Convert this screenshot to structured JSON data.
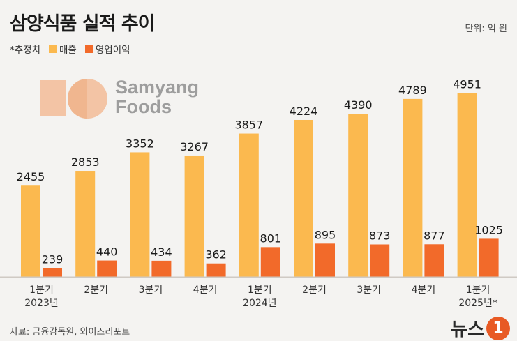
{
  "title": "삼양식품 실적 추이",
  "unit": "단위: 억 원",
  "note": "*추정치",
  "logo": {
    "brand_line1": "Samyang",
    "brand_line2": "Foods"
  },
  "source": "자료: 금융감독원, 와이즈리포트",
  "news_logo": {
    "text": "뉴스",
    "badge": "1"
  },
  "colors": {
    "revenue": "#fbb94f",
    "operating_profit": "#f26a2a",
    "background": "#f4f3f1"
  },
  "chart_data": {
    "type": "bar",
    "categories": [
      "1분기\n2023년",
      "2분기",
      "3분기",
      "4분기",
      "1분기\n2024년",
      "2분기",
      "3분기",
      "4분기",
      "1분기\n2025년*"
    ],
    "series": [
      {
        "name": "매출",
        "values": [
          2455,
          2853,
          3352,
          3267,
          3857,
          4224,
          4390,
          4789,
          4951
        ]
      },
      {
        "name": "영업이익",
        "values": [
          239,
          440,
          434,
          362,
          801,
          895,
          873,
          877,
          1025
        ]
      }
    ],
    "ylim": [
      0,
      5200
    ],
    "grid": false,
    "legend": "top-left"
  }
}
